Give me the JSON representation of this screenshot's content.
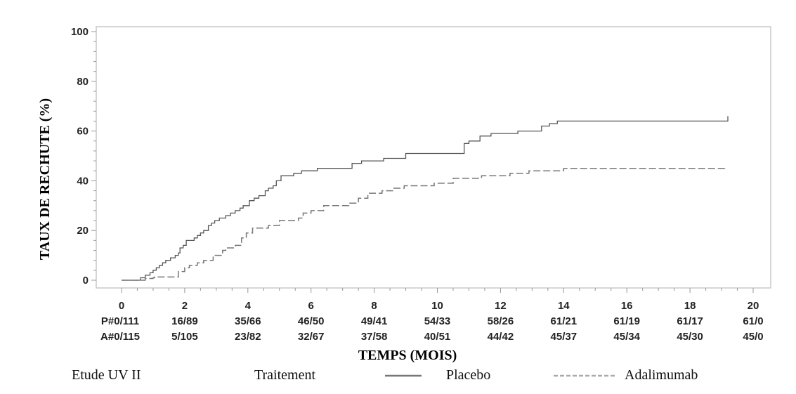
{
  "chart_data": {
    "type": "line",
    "xlabel": "TEMPS (MOIS)",
    "ylabel": "TAUX DE RECHUTE (%)",
    "xlim": [
      0,
      20
    ],
    "ylim": [
      0,
      100
    ],
    "x_ticks": [
      0,
      2,
      4,
      6,
      8,
      10,
      12,
      14,
      16,
      18,
      20
    ],
    "y_ticks": [
      0,
      20,
      40,
      60,
      80,
      100
    ],
    "step": true,
    "series": [
      {
        "name": "Placebo",
        "color": "#555555",
        "style": "solid",
        "x": [
          0,
          0.6,
          0.75,
          0.9,
          1.0,
          1.1,
          1.2,
          1.3,
          1.4,
          1.55,
          1.7,
          1.8,
          1.85,
          1.95,
          2.05,
          2.3,
          2.4,
          2.5,
          2.6,
          2.75,
          2.85,
          2.95,
          3.1,
          3.3,
          3.45,
          3.6,
          3.75,
          3.85,
          4.05,
          4.2,
          4.35,
          4.55,
          4.65,
          4.8,
          4.9,
          5.05,
          5.45,
          5.7,
          6.2,
          7.3,
          7.6,
          8.3,
          9.0,
          10.85,
          11.0,
          11.35,
          11.7,
          12.55,
          13.3,
          13.55,
          13.8,
          19.2
        ],
        "y": [
          0,
          1,
          2,
          3,
          4,
          5,
          6,
          7,
          8,
          9,
          10,
          11,
          13,
          14,
          16,
          17,
          18,
          19,
          20,
          22,
          23,
          24,
          25,
          26,
          27,
          28,
          29,
          30,
          32,
          33,
          34,
          36,
          37,
          38,
          40,
          42,
          43,
          44,
          45,
          47,
          48,
          49,
          51,
          55,
          56,
          58,
          59,
          60,
          62,
          63,
          64,
          66
        ]
      },
      {
        "name": "Adalimumab",
        "color": "#777777",
        "style": "dashed",
        "x": [
          0,
          0.75,
          1.0,
          1.05,
          1.8,
          2.0,
          2.15,
          2.4,
          2.6,
          2.9,
          3.2,
          3.3,
          3.6,
          3.8,
          3.95,
          4.15,
          4.65,
          5.0,
          5.6,
          5.75,
          6.0,
          6.4,
          7.2,
          7.5,
          7.8,
          8.25,
          8.6,
          8.95,
          9.9,
          10.5,
          11.4,
          12.3,
          12.9,
          14.0,
          19.1
        ],
        "y": [
          0,
          0.7,
          1,
          1.3,
          3.5,
          5,
          6,
          7,
          8,
          10,
          12,
          13,
          14,
          17,
          19,
          21,
          22,
          24,
          25,
          27,
          28,
          30,
          31,
          33,
          35,
          36,
          37,
          38,
          39,
          41,
          42,
          43,
          44,
          45,
          45.5
        ]
      }
    ],
    "risk_table": {
      "rows": [
        {
          "label": "P#0/111",
          "values": [
            "16/89",
            "35/66",
            "46/50",
            "49/41",
            "54/33",
            "58/26",
            "61/21",
            "61/19",
            "61/17",
            "61/0"
          ]
        },
        {
          "label": "A#0/115",
          "values": [
            "5/105",
            "23/82",
            "32/67",
            "37/58",
            "40/51",
            "44/42",
            "45/37",
            "45/34",
            "45/30",
            "45/0"
          ]
        }
      ]
    },
    "legend": {
      "study_label": "Etude UV II",
      "treatment_label": "Traitement",
      "entries": [
        {
          "label": "Placebo",
          "style": "solid",
          "color": "#666666"
        },
        {
          "label": "Adalimumab",
          "style": "dashed",
          "color": "#999999"
        }
      ]
    }
  }
}
